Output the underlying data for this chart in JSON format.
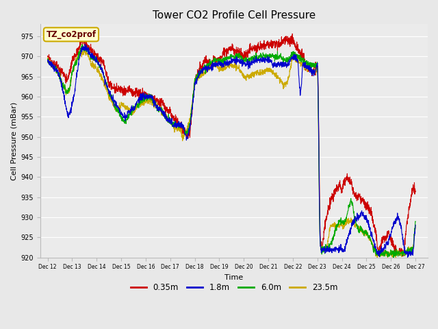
{
  "title": "Tower CO2 Profile Cell Pressure",
  "ylabel": "Cell Pressure (mBar)",
  "xlabel": "Time",
  "legend_label": "TZ_co2prof",
  "series_labels": [
    "0.35m",
    "1.8m",
    "6.0m",
    "23.5m"
  ],
  "series_colors": [
    "#cc0000",
    "#0000cc",
    "#00aa00",
    "#ccaa00"
  ],
  "ylim": [
    920,
    978
  ],
  "yticks": [
    920,
    925,
    930,
    935,
    940,
    945,
    950,
    955,
    960,
    965,
    970,
    975
  ],
  "xtick_labels": [
    "Dec 12",
    "Dec 13",
    "Dec 14",
    "Dec 15",
    "Dec 16",
    "Dec 17",
    "Dec 18",
    "Dec 19",
    "Dec 20",
    "Dec 21",
    "Dec 22",
    "Dec 23",
    "Dec 24",
    "Dec 25",
    "Dec 26",
    "Dec 27"
  ],
  "bg_color": "#e8e8e8",
  "plot_bg_color": "#ebebeb",
  "grid_color": "#ffffff",
  "title_fontsize": 11,
  "axis_fontsize": 8,
  "tick_fontsize": 7
}
